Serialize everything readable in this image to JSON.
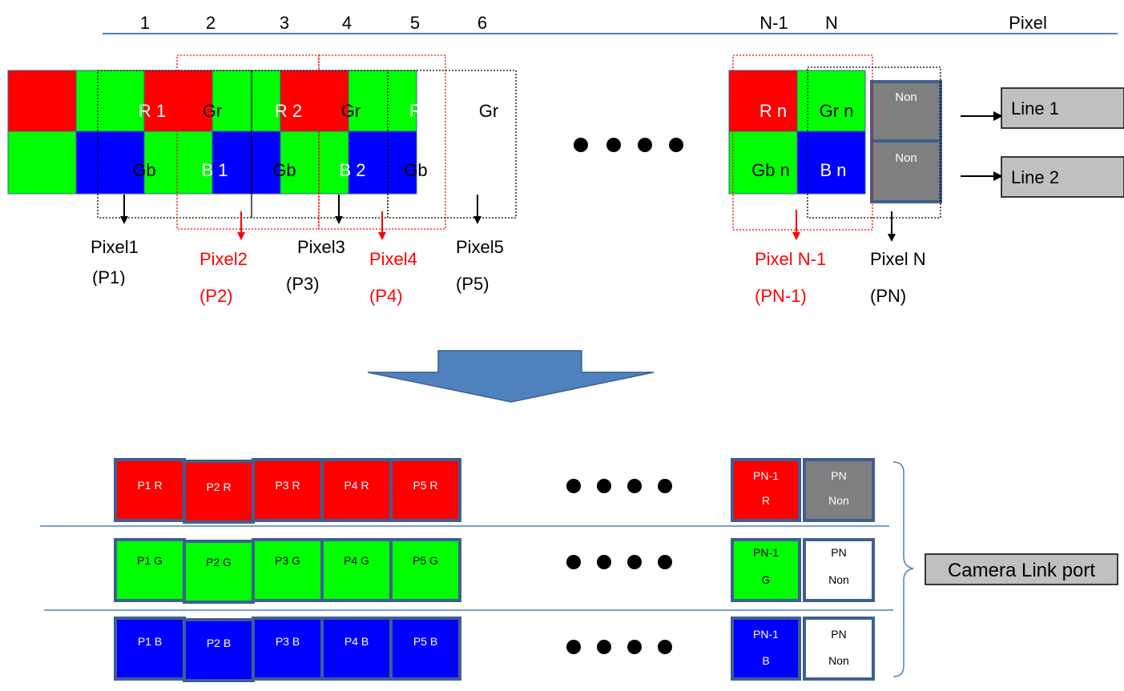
{
  "colors": {
    "red": "#ff0000",
    "green": "#00ff00",
    "blue": "#0000ff",
    "gray": "#7f7f7f",
    "light_gray": "#c0c0c0",
    "border": "#3f5f8f",
    "accent_line": "#4f81bd",
    "arrow_fill": "#4f81bd",
    "label_red": "#ff0000"
  },
  "header": {
    "columns": [
      "1",
      "2",
      "3",
      "4",
      "5",
      "6",
      "N-1",
      "N"
    ],
    "pixel_label": "Pixel"
  },
  "sensor": {
    "cells": [
      "R 1",
      "Gr",
      "R 2",
      "Gr",
      "R",
      "Gr",
      "Gb",
      "B 1",
      "Gb",
      "B 2",
      "Gb"
    ],
    "tail_cells": [
      "R n",
      "Gr n",
      "Gb n",
      "B n"
    ],
    "non_top": "Non",
    "non_bottom": "Non",
    "dots": "● ● ● ●"
  },
  "lines": {
    "line1": "Line 1",
    "line2": "Line 2"
  },
  "pixel_labels": {
    "p1_name": "Pixel1",
    "p1_code": "(P1)",
    "p2_name": "Pixel2",
    "p2_code": "(P2)",
    "p3_name": "Pixel3",
    "p3_code": "(P3)",
    "p4_name": "Pixel4",
    "p4_code": "(P4)",
    "p5_name": "Pixel5",
    "p5_code": "(P5)",
    "pn1_name": "Pixel N-1",
    "pn1_code": "(PN-1)",
    "pn_name": "Pixel N",
    "pn_code": "(PN)"
  },
  "output": {
    "red_row": [
      "P1 R",
      "P2 R",
      "P3 R",
      "P4 R",
      "P5 R"
    ],
    "green_row": [
      "P1 G",
      "P2 G",
      "P3 G",
      "P4 G",
      "P5 G"
    ],
    "blue_row": [
      "P1 B",
      "P2 B",
      "P3 B",
      "P4 B",
      "P5 B"
    ],
    "red_tail_a": "PN-1",
    "red_tail_b": "R",
    "green_tail_a": "PN-1",
    "green_tail_b": "G",
    "blue_tail_a": "PN-1",
    "blue_tail_b": "B",
    "pn_a": "PN",
    "pn_b": "Non",
    "dots": "● ● ● ●",
    "port_label": "Camera Link port"
  }
}
